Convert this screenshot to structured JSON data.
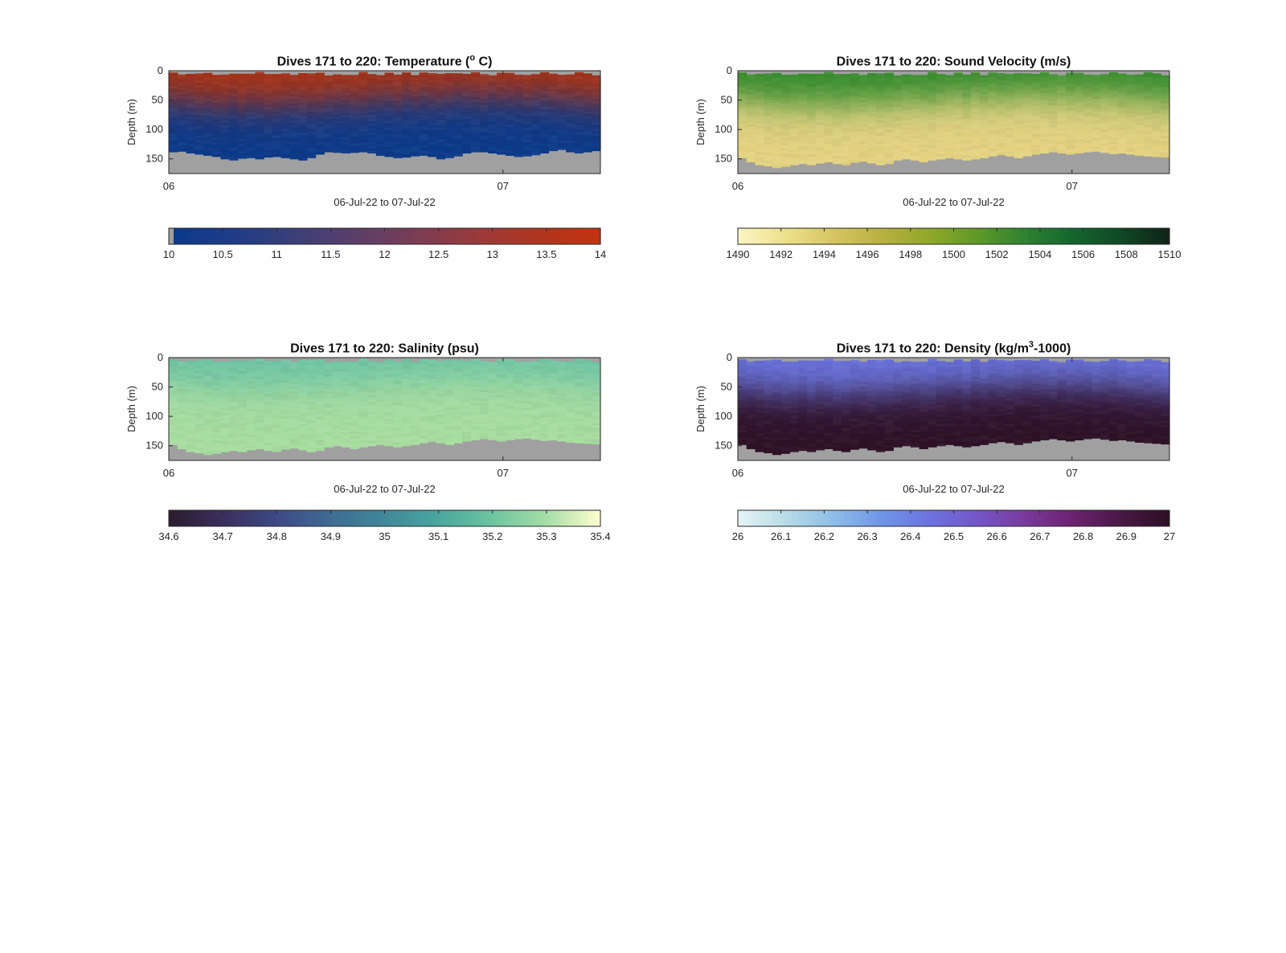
{
  "chart_data": [
    {
      "type": "heatmap",
      "title_main": "Dives 171 to 220: Temperature (",
      "title_sup": "o",
      "title_end": " C)",
      "xlabel": "06-Jul-22 to 07-Jul-22",
      "ylabel": "Depth (m)",
      "x_ticks": [
        "06",
        "07"
      ],
      "y_ticks": [
        "0",
        "50",
        "100",
        "150"
      ],
      "ylim": [
        0,
        175
      ],
      "xlim_hours": [
        0,
        31
      ],
      "colorbar": {
        "min": 10,
        "max": 14,
        "ticks": [
          "10",
          "10.5",
          "11",
          "11.5",
          "12",
          "12.5",
          "13",
          "13.5",
          "14"
        ]
      },
      "colormap": [
        "#0a3a8c",
        "#1e3c88",
        "#3a3f7a",
        "#5a3f6a",
        "#7a3c55",
        "#9a3a3c",
        "#b03620",
        "#c23310"
      ],
      "surface_color": "#ad3212",
      "deep_color": "#0b3a8a",
      "thermocline_depth_m": 45,
      "bottom_depth_m": [
        138,
        137,
        140,
        142,
        144,
        146,
        150,
        152,
        149,
        148,
        150,
        147,
        146,
        148,
        150,
        152,
        148,
        142,
        138,
        139,
        140,
        139,
        138,
        140,
        144,
        146,
        148,
        147,
        145,
        144,
        146,
        150,
        148,
        145,
        140,
        138,
        138,
        140,
        142,
        144,
        146,
        145,
        143,
        140,
        136,
        134,
        138,
        140,
        138,
        136
      ]
    },
    {
      "type": "heatmap",
      "title_main": "Dives 171 to 220: Sound Velocity (m/s)",
      "title_sup": "",
      "title_end": "",
      "xlabel": "06-Jul-22 to 07-Jul-22",
      "ylabel": "Depth (m)",
      "x_ticks": [
        "06",
        "07"
      ],
      "y_ticks": [
        "0",
        "50",
        "100",
        "150"
      ],
      "ylim": [
        0,
        175
      ],
      "xlim_hours": [
        0,
        31
      ],
      "colorbar": {
        "min": 1490,
        "max": 1510,
        "ticks": [
          "1490",
          "1492",
          "1494",
          "1496",
          "1498",
          "1500",
          "1502",
          "1504",
          "1506",
          "1508",
          "1510"
        ]
      },
      "colormap": [
        "#fbf4c0",
        "#ece08a",
        "#d6c460",
        "#b8b040",
        "#8fa828",
        "#5f9a28",
        "#2e8230",
        "#15662f",
        "#0f4a26",
        "#112417"
      ],
      "surface_color": "#2f8a2a",
      "deep_color": "#e5d382",
      "thermocline_depth_m": 45,
      "bottom_depth_m": [
        148,
        155,
        160,
        162,
        165,
        163,
        160,
        158,
        160,
        157,
        155,
        158,
        160,
        156,
        154,
        157,
        160,
        158,
        152,
        150,
        152,
        155,
        152,
        150,
        148,
        150,
        152,
        150,
        148,
        145,
        143,
        145,
        148,
        145,
        142,
        140,
        138,
        140,
        142,
        140,
        138,
        137,
        139,
        141,
        140,
        142,
        144,
        145,
        146,
        147
      ]
    },
    {
      "type": "heatmap",
      "title_main": "Dives 171 to 220: Salinity (psu)",
      "title_sup": "",
      "title_end": "",
      "xlabel": "06-Jul-22 to 07-Jul-22",
      "ylabel": "Depth (m)",
      "x_ticks": [
        "06",
        "07"
      ],
      "y_ticks": [
        "0",
        "50",
        "100",
        "150"
      ],
      "ylim": [
        0,
        175
      ],
      "xlim_hours": [
        0,
        31
      ],
      "colorbar": {
        "min": 34.6,
        "max": 35.4,
        "ticks": [
          "34.6",
          "34.7",
          "34.8",
          "34.9",
          "35",
          "35.1",
          "35.2",
          "35.3",
          "35.4"
        ]
      },
      "colormap": [
        "#2b1e2e",
        "#3b2f5e",
        "#3e4a86",
        "#3f6c93",
        "#40889a",
        "#4aa69e",
        "#6cc4a0",
        "#a4dda6",
        "#fdfcce"
      ],
      "surface_color": "#6cc4a4",
      "deep_color": "#a8dda0",
      "thermocline_depth_m": 40,
      "bottom_depth_m": [
        148,
        155,
        160,
        162,
        165,
        163,
        160,
        158,
        160,
        157,
        155,
        158,
        160,
        156,
        154,
        157,
        160,
        158,
        152,
        150,
        152,
        155,
        152,
        150,
        148,
        150,
        152,
        150,
        148,
        145,
        143,
        145,
        148,
        145,
        142,
        140,
        138,
        140,
        142,
        140,
        138,
        137,
        139,
        141,
        140,
        142,
        144,
        145,
        146,
        147
      ]
    },
    {
      "type": "heatmap",
      "title_main": "Dives 171 to 220: Density (kg/m",
      "title_sup": "3",
      "title_end": "-1000)",
      "xlabel": "06-Jul-22 to 07-Jul-22",
      "ylabel": "Depth (m)",
      "x_ticks": [
        "06",
        "07"
      ],
      "y_ticks": [
        "0",
        "50",
        "100",
        "150"
      ],
      "ylim": [
        0,
        175
      ],
      "xlim_hours": [
        0,
        31
      ],
      "colorbar": {
        "min": 26,
        "max": 27,
        "ticks": [
          "26",
          "26.1",
          "26.2",
          "26.3",
          "26.4",
          "26.5",
          "26.6",
          "26.7",
          "26.8",
          "26.9",
          "27"
        ]
      },
      "colormap": [
        "#e4f2f4",
        "#b6dbe6",
        "#8cbde6",
        "#6e95e6",
        "#6d72e0",
        "#7456c8",
        "#7a3a9c",
        "#6c2270",
        "#4a1846",
        "#2e1026"
      ],
      "surface_color": "#6a74e0",
      "deep_color": "#2e1026",
      "thermocline_depth_m": 50,
      "bottom_depth_m": [
        148,
        155,
        160,
        162,
        165,
        163,
        160,
        158,
        160,
        157,
        155,
        158,
        160,
        156,
        154,
        157,
        160,
        158,
        152,
        150,
        152,
        155,
        152,
        150,
        148,
        150,
        152,
        150,
        148,
        145,
        143,
        145,
        148,
        145,
        142,
        140,
        138,
        140,
        142,
        140,
        138,
        137,
        139,
        141,
        140,
        142,
        144,
        145,
        146,
        147
      ]
    }
  ],
  "colors": {
    "nodata": "#a0a0a0",
    "axis": "#262626"
  }
}
